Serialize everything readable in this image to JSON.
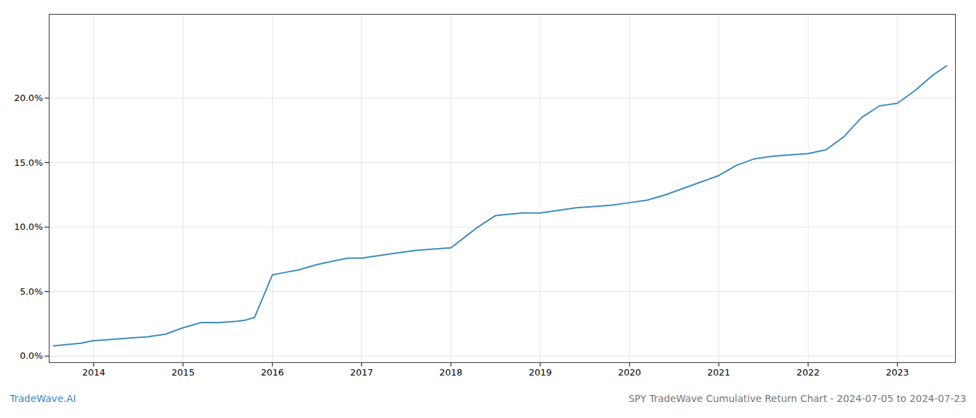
{
  "chart_data": {
    "type": "line",
    "title": "SPY TradeWave Cumulative Return Chart - 2024-07-05 to 2024-07-23",
    "annotations": [
      "TradeWave.AI"
    ],
    "color": "#3a8abf",
    "grid": true,
    "x": [
      2013.55,
      2013.7,
      2013.85,
      2014.0,
      2014.2,
      2014.4,
      2014.6,
      2014.8,
      2015.0,
      2015.1,
      2015.2,
      2015.4,
      2015.6,
      2015.7,
      2015.8,
      2016.0,
      2016.15,
      2016.3,
      2016.5,
      2016.7,
      2016.85,
      2017.0,
      2017.2,
      2017.4,
      2017.6,
      2017.8,
      2018.0,
      2018.15,
      2018.3,
      2018.5,
      2018.65,
      2018.8,
      2019.0,
      2019.2,
      2019.4,
      2019.6,
      2019.8,
      2020.0,
      2020.2,
      2020.4,
      2020.6,
      2020.8,
      2021.0,
      2021.2,
      2021.4,
      2021.6,
      2021.8,
      2022.0,
      2022.2,
      2022.4,
      2022.6,
      2022.8,
      2023.0,
      2023.2,
      2023.4,
      2023.55
    ],
    "values": [
      0.008,
      0.009,
      0.01,
      0.012,
      0.013,
      0.014,
      0.015,
      0.017,
      0.022,
      0.024,
      0.026,
      0.026,
      0.027,
      0.028,
      0.03,
      0.063,
      0.065,
      0.067,
      0.071,
      0.074,
      0.076,
      0.076,
      0.078,
      0.08,
      0.082,
      0.083,
      0.084,
      0.092,
      0.1,
      0.109,
      0.11,
      0.111,
      0.111,
      0.113,
      0.115,
      0.116,
      0.117,
      0.119,
      0.121,
      0.125,
      0.13,
      0.135,
      0.14,
      0.148,
      0.153,
      0.155,
      0.156,
      0.157,
      0.16,
      0.17,
      0.185,
      0.194,
      0.196,
      0.206,
      0.218,
      0.225
    ],
    "xlim": [
      2013.5,
      2023.65
    ],
    "ylim": [
      -0.005,
      0.265
    ],
    "xticks": [
      2014,
      2015,
      2016,
      2017,
      2018,
      2019,
      2020,
      2021,
      2022,
      2023
    ],
    "yticks": [
      {
        "value": 0.0,
        "label": "0.0%"
      },
      {
        "value": 0.05,
        "label": "5.0%"
      },
      {
        "value": 0.1,
        "label": "10.0%"
      },
      {
        "value": 0.15,
        "label": "15.0%"
      },
      {
        "value": 0.2,
        "label": "20.0%"
      }
    ]
  }
}
